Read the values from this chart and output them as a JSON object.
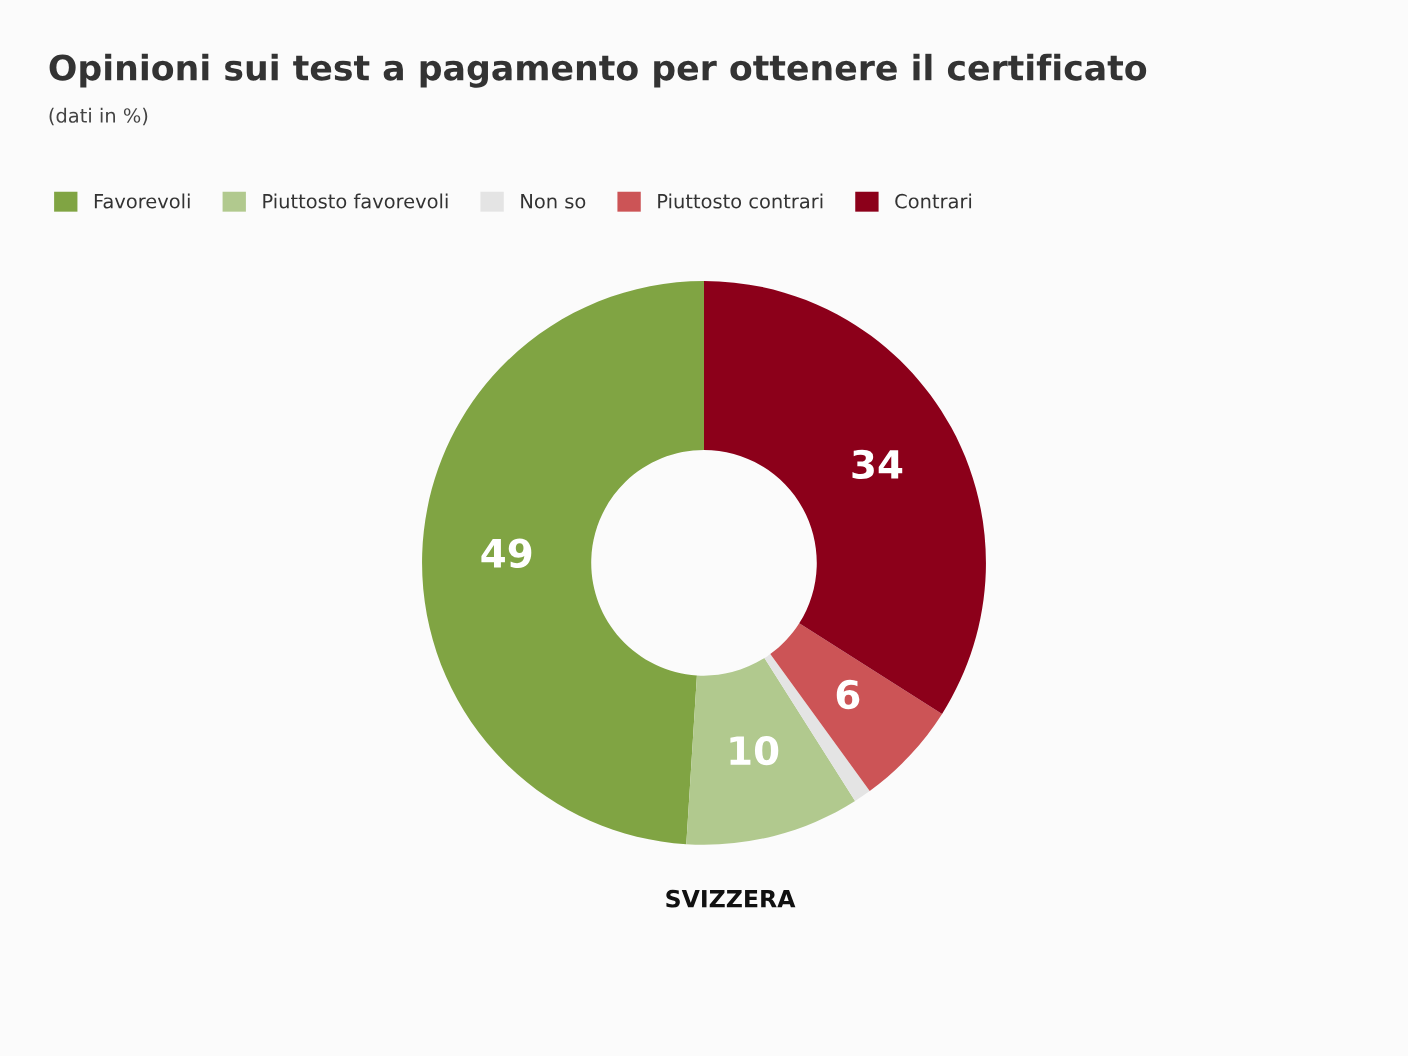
{
  "chart_data": {
    "type": "donut",
    "title": "Opinioni sui test a pagamento per ottenere il certificato",
    "subtitle": "(dati in %)",
    "xlabel": "SVIZZERA",
    "categories": [
      "Favorevoli",
      "Piuttosto favorevoli",
      "Non so",
      "Piuttosto contrari",
      "Contrari"
    ],
    "values": [
      49,
      10,
      1,
      6,
      34
    ],
    "colors": [
      "#80a443",
      "#b1c98e",
      "#e4e4e4",
      "#cc5456",
      "#8c001a"
    ],
    "value_labels": [
      "49",
      "10",
      null,
      "6",
      "34"
    ],
    "legend": "top left"
  }
}
